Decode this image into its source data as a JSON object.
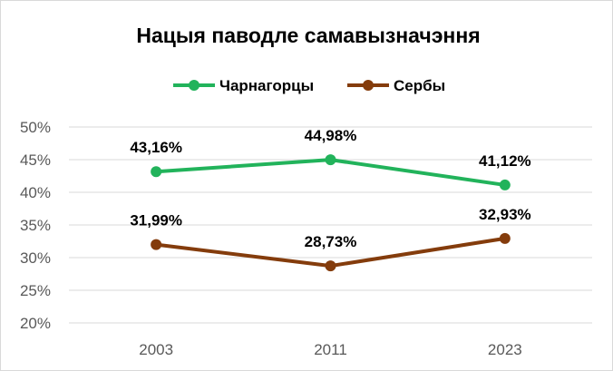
{
  "chart_data": {
    "type": "line",
    "title": "Нацыя паводле самавызначэння",
    "categories": [
      "2003",
      "2011",
      "2023"
    ],
    "series": [
      {
        "name": "Чарнагорцы",
        "values": [
          43.16,
          44.98,
          41.12
        ],
        "labels": [
          "43,16%",
          "44,98%",
          "41,12%"
        ],
        "color": "#22b35b"
      },
      {
        "name": "Сербы",
        "values": [
          31.99,
          28.73,
          32.93
        ],
        "labels": [
          "31,99%",
          "28,73%",
          "32,93%"
        ],
        "color": "#843c0c"
      }
    ],
    "ylim": [
      20,
      50
    ],
    "yticks": [
      50,
      45,
      40,
      35,
      30,
      25,
      20
    ],
    "ytick_labels": [
      "50%",
      "45%",
      "40%",
      "35%",
      "30%",
      "25%",
      "20%"
    ],
    "grid": true,
    "legend_position": "top"
  }
}
